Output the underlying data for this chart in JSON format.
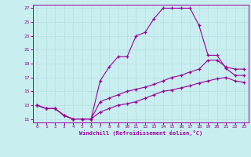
{
  "xlabel": "Windchill (Refroidissement éolien,°C)",
  "bg_color": "#c8eef0",
  "line_color": "#990099",
  "grid_color": "#b8dfe0",
  "xlim": [
    -0.5,
    23.5
  ],
  "ylim": [
    10.5,
    27.5
  ],
  "xticks": [
    0,
    1,
    2,
    3,
    4,
    5,
    6,
    7,
    8,
    9,
    10,
    11,
    12,
    13,
    14,
    15,
    16,
    17,
    18,
    19,
    20,
    21,
    22,
    23
  ],
  "yticks": [
    11,
    13,
    15,
    17,
    19,
    21,
    23,
    25,
    27
  ],
  "line1_x": [
    0,
    1,
    2,
    3,
    4,
    5,
    6,
    7,
    8,
    9,
    10,
    11,
    12,
    13,
    14,
    15,
    16,
    17,
    18,
    19,
    20,
    21,
    22,
    23
  ],
  "line1_y": [
    13,
    12.5,
    12.5,
    11.5,
    11,
    11,
    11,
    16.5,
    18.5,
    20,
    20,
    23,
    23.5,
    25.5,
    27,
    27,
    27,
    27,
    24.5,
    20.2,
    20.2,
    18.3,
    17.3,
    17.3
  ],
  "line2_x": [
    0,
    1,
    2,
    3,
    4,
    5,
    6,
    7,
    8,
    9,
    10,
    11,
    12,
    13,
    14,
    15,
    16,
    17,
    18,
    19,
    20,
    21,
    22,
    23
  ],
  "line2_y": [
    13,
    12.5,
    12.5,
    11.5,
    11,
    11,
    11,
    13.5,
    14,
    14.5,
    15,
    15.3,
    15.6,
    16,
    16.5,
    17,
    17.3,
    17.8,
    18.2,
    19.5,
    19.5,
    18.5,
    18.2,
    18.2
  ],
  "line3_x": [
    0,
    1,
    2,
    3,
    4,
    5,
    6,
    7,
    8,
    9,
    10,
    11,
    12,
    13,
    14,
    15,
    16,
    17,
    18,
    19,
    20,
    21,
    22,
    23
  ],
  "line3_y": [
    13,
    12.5,
    12.5,
    11.5,
    11,
    11,
    11,
    12,
    12.5,
    13,
    13.2,
    13.5,
    14,
    14.5,
    15,
    15.2,
    15.5,
    15.8,
    16.2,
    16.5,
    16.8,
    17,
    16.5,
    16.3
  ]
}
